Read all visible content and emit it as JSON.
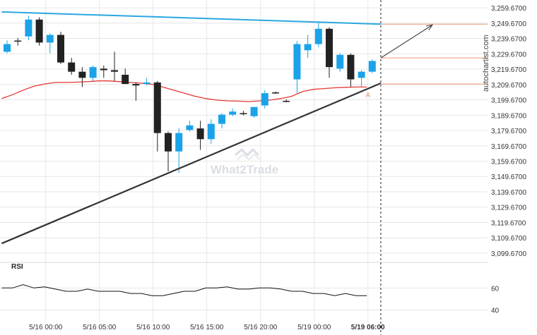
{
  "chart_data": {
    "type": "candlestick",
    "y_ticks": [
      "3,259.6700",
      "3,249.6700",
      "3,239.6700",
      "3,229.6700",
      "3,219.6700",
      "3,209.6700",
      "3,199.6700",
      "3,189.6700",
      "3,179.6700",
      "3,169.6700",
      "3,159.6700",
      "3,149.6700",
      "3,139.6700",
      "3,129.6700",
      "3,119.6700",
      "3,109.6700",
      "3,099.6700"
    ],
    "y_tick_values": [
      3259.67,
      3249.67,
      3239.67,
      3229.67,
      3219.67,
      3209.67,
      3199.67,
      3189.67,
      3179.67,
      3169.67,
      3159.67,
      3149.67,
      3139.67,
      3129.67,
      3119.67,
      3109.67,
      3099.67
    ],
    "ylim": [
      3093.67,
      3262
    ],
    "x_ticks": [
      {
        "label": "5/16 00:00",
        "index": 3.6
      },
      {
        "label": "5/16 05:00",
        "index": 8.6
      },
      {
        "label": "5/16 10:00",
        "index": 13.6
      },
      {
        "label": "5/16 15:00",
        "index": 18.6
      },
      {
        "label": "5/16 20:00",
        "index": 23.6
      },
      {
        "label": "5/19 00:00",
        "index": 28.6
      },
      {
        "label": "5/19 06:00",
        "index": 33.6,
        "bold": true
      }
    ],
    "candles": [
      {
        "o": 3236.0,
        "h": 3238.5,
        "l": 3230.0,
        "c": 3231.0,
        "dir": "up"
      },
      {
        "o": 3238.0,
        "h": 3240.0,
        "l": 3235.0,
        "c": 3238.3,
        "dir": "down"
      },
      {
        "o": 3241.0,
        "h": 3254.5,
        "l": 3238.5,
        "c": 3252.0,
        "dir": "up"
      },
      {
        "o": 3252.0,
        "h": 3253.5,
        "l": 3235.0,
        "c": 3237.0,
        "dir": "down"
      },
      {
        "o": 3237.0,
        "h": 3243.0,
        "l": 3230.0,
        "c": 3242.0,
        "dir": "up"
      },
      {
        "o": 3242.0,
        "h": 3244.0,
        "l": 3223.0,
        "c": 3224.0,
        "dir": "down"
      },
      {
        "o": 3224.0,
        "h": 3227.0,
        "l": 3216.0,
        "c": 3218.0,
        "dir": "down"
      },
      {
        "o": 3218.0,
        "h": 3221.0,
        "l": 3208.0,
        "c": 3214.0,
        "dir": "down"
      },
      {
        "o": 3214.0,
        "h": 3222.0,
        "l": 3212.0,
        "c": 3221.0,
        "dir": "up"
      },
      {
        "o": 3220.0,
        "h": 3222.0,
        "l": 3214.0,
        "c": 3219.0,
        "dir": "down"
      },
      {
        "o": 3218.0,
        "h": 3231.0,
        "l": 3212.0,
        "c": 3219.0,
        "dir": "down"
      },
      {
        "o": 3216.0,
        "h": 3220.0,
        "l": 3210.0,
        "c": 3210.0,
        "dir": "down"
      },
      {
        "o": 3210.0,
        "h": 3211.0,
        "l": 3199.0,
        "c": 3209.0,
        "dir": "down"
      },
      {
        "o": 3210.0,
        "h": 3214.0,
        "l": 3209.0,
        "c": 3211.0,
        "dir": "up"
      },
      {
        "o": 3211.0,
        "h": 3212.0,
        "l": 3166.0,
        "c": 3178.0,
        "dir": "down"
      },
      {
        "o": 3178.0,
        "h": 3179.0,
        "l": 3153.0,
        "c": 3166.0,
        "dir": "down"
      },
      {
        "o": 3166.0,
        "h": 3181.0,
        "l": 3152.0,
        "c": 3178.0,
        "dir": "up"
      },
      {
        "o": 3180.0,
        "h": 3186.0,
        "l": 3179.0,
        "c": 3183.0,
        "dir": "up"
      },
      {
        "o": 3181.0,
        "h": 3186.0,
        "l": 3167.0,
        "c": 3174.0,
        "dir": "down"
      },
      {
        "o": 3174.0,
        "h": 3187.0,
        "l": 3171.0,
        "c": 3184.0,
        "dir": "up"
      },
      {
        "o": 3184.0,
        "h": 3191.0,
        "l": 3181.0,
        "c": 3190.0,
        "dir": "up"
      },
      {
        "o": 3190.0,
        "h": 3194.0,
        "l": 3189.0,
        "c": 3192.0,
        "dir": "up"
      },
      {
        "o": 3190.5,
        "h": 3192.5,
        "l": 3189.5,
        "c": 3191.0,
        "dir": "down"
      },
      {
        "o": 3189.0,
        "h": 3194.0,
        "l": 3188.0,
        "c": 3195.0,
        "dir": "up"
      },
      {
        "o": 3196.0,
        "h": 3206.0,
        "l": 3194.0,
        "c": 3204.0,
        "dir": "up"
      },
      {
        "o": 3204.0,
        "h": 3205.0,
        "l": 3203.5,
        "c": 3204.5,
        "dir": "down"
      },
      {
        "o": 3199.0,
        "h": 3200.0,
        "l": 3198.0,
        "c": 3199.0,
        "dir": "down"
      },
      {
        "o": 3213.0,
        "h": 3238.0,
        "l": 3204.0,
        "c": 3236.0,
        "dir": "up"
      },
      {
        "o": 3232.0,
        "h": 3242.0,
        "l": 3227.0,
        "c": 3236.0,
        "dir": "up"
      },
      {
        "o": 3236.0,
        "h": 3250.0,
        "l": 3234.0,
        "c": 3246.0,
        "dir": "up"
      },
      {
        "o": 3246.0,
        "h": 3247.0,
        "l": 3214.0,
        "c": 3221.0,
        "dir": "down"
      },
      {
        "o": 3220.0,
        "h": 3230.0,
        "l": 3218.0,
        "c": 3229.0,
        "dir": "up"
      },
      {
        "o": 3229.0,
        "h": 3230.0,
        "l": 3208.0,
        "c": 3213.0,
        "dir": "down"
      },
      {
        "o": 3214.0,
        "h": 3219.0,
        "l": 3208.0,
        "c": 3218.0,
        "dir": "up"
      },
      {
        "o": 3218.0,
        "h": 3226.0,
        "l": 3217.0,
        "c": 3225.0,
        "dir": "up"
      }
    ],
    "moving_average": [
      3200.5,
      3203.0,
      3206.0,
      3208.5,
      3210.0,
      3211.0,
      3211.0,
      3211.2,
      3211.5,
      3212.0,
      3212.0,
      3211.5,
      3211.0,
      3210.5,
      3209.8,
      3208.0,
      3206.0,
      3204.0,
      3202.0,
      3200.5,
      3199.5,
      3199.0,
      3198.8,
      3198.5,
      3199.0,
      3199.5,
      3200.5,
      3202.0,
      3205.0,
      3206.5,
      3207.0,
      3207.5,
      3207.8,
      3208.0,
      3208.0
    ],
    "resistance_line": {
      "x": [
        -0.5,
        34.8
      ],
      "y": [
        3257.0,
        3249.0
      ]
    },
    "support_line": {
      "x": [
        -0.5,
        34.8
      ],
      "y": [
        3106.0,
        3210.5
      ]
    },
    "level_lines": [
      3249.0,
      3227.0,
      3210.0
    ],
    "forecast_arrow": {
      "x": [
        34.8,
        39.6
      ],
      "y": [
        3227.0,
        3248.5
      ]
    },
    "pattern_label": "A",
    "pattern_label_pos": {
      "x": 33.6,
      "y": 3206.0
    },
    "current_index": 34.8,
    "rsi_label": "RSI",
    "rsi_ticks": [
      60,
      40
    ],
    "rsi_ylim": [
      30,
      75
    ],
    "rsi_values": [
      60,
      60,
      63,
      60,
      61,
      59,
      57,
      57,
      59,
      57,
      57,
      57,
      55,
      55,
      53,
      53,
      55,
      57,
      57,
      60,
      60,
      61,
      59,
      59,
      60,
      60,
      59,
      57,
      57,
      55,
      55,
      53,
      55,
      53,
      53
    ],
    "colors": {
      "up": "#1aa3e8",
      "down": "#222222",
      "ma": "#e53935",
      "resistance": "#29a8e0",
      "support": "#333333",
      "levels": "#e9967a",
      "arrow": "#444444",
      "grid": "#e6e6e6",
      "rsi": "#111111"
    }
  },
  "watermark": {
    "text": "What2Trade"
  },
  "site": "autochartist.com"
}
